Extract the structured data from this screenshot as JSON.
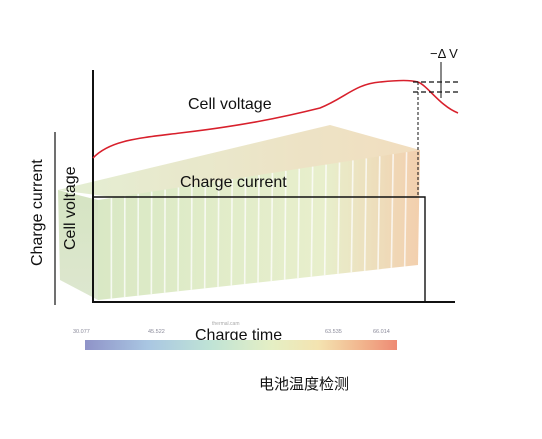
{
  "labels": {
    "cell_voltage": "Cell voltage",
    "charge_current": "Charge current",
    "y_axis_charge_current": "Charge current",
    "y_axis_cell_voltage": "Cell voltage",
    "x_axis": "Charge time",
    "delta_v": "−Δ V",
    "caption": "电池温度检测"
  },
  "color_scale": {
    "ticks": [
      "30.077",
      "45.522",
      "63.535",
      "66.014"
    ],
    "gradient": [
      "#8f93c8",
      "#a9c6e2",
      "#bfe3d6",
      "#e5efc4",
      "#f4e3b0",
      "#f1b08a",
      "#ee8a74"
    ]
  },
  "watermark": "thermal.cam",
  "colors": {
    "voltage_curve": "#d8202c",
    "axis": "#111111",
    "pack_face": "#dbe9c0",
    "pack_hot": "#f2b08c"
  }
}
